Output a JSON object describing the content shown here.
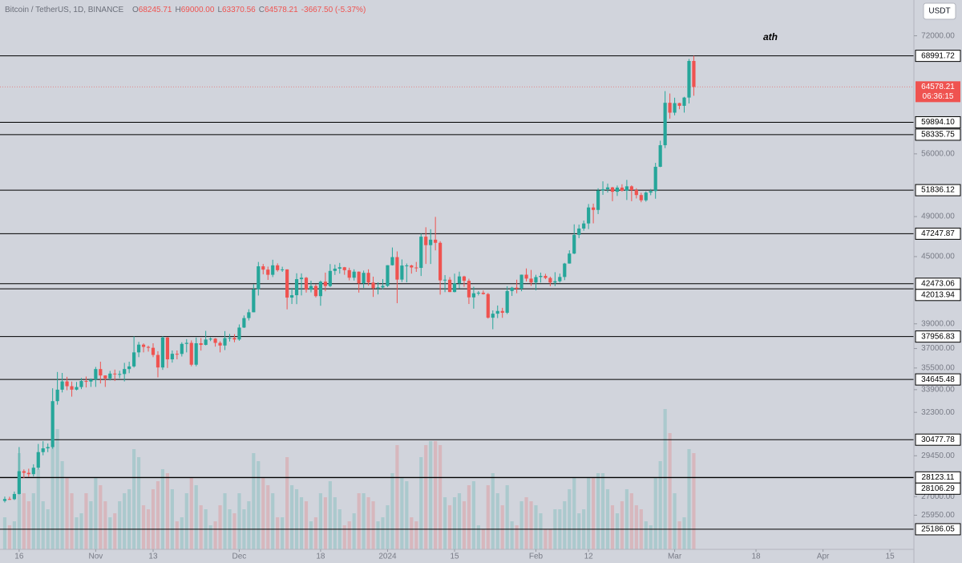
{
  "header": {
    "symbol": "Bitcoin / TetherUS, 1D, BINANCE",
    "ohlc": [
      {
        "key": "O",
        "value": "68245.71"
      },
      {
        "key": "H",
        "value": "69000.00"
      },
      {
        "key": "L",
        "value": "63370.56"
      },
      {
        "key": "C",
        "value": "64578.21"
      }
    ],
    "change": "-3667.50 (-5.37%)"
  },
  "chart_data": {
    "type": "candlestick",
    "currency": "USDT",
    "annotation": "ath",
    "log_scale": true,
    "up_color": "#26a69a",
    "down_color": "#ef5350",
    "xlim": [
      -1,
      190
    ],
    "xticks": [
      {
        "value": 3,
        "label": "16"
      },
      {
        "value": 19,
        "label": "Nov"
      },
      {
        "value": 31,
        "label": "13"
      },
      {
        "value": 49,
        "label": "Dec"
      },
      {
        "value": 66,
        "label": "18"
      },
      {
        "value": 80,
        "label": "2024"
      },
      {
        "value": 94,
        "label": "15"
      },
      {
        "value": 111,
        "label": "Feb"
      },
      {
        "value": 122,
        "label": "12"
      },
      {
        "value": 140,
        "label": "Mar"
      },
      {
        "value": 157,
        "label": "18"
      },
      {
        "value": 171,
        "label": "Apr"
      },
      {
        "value": 185,
        "label": "15"
      }
    ],
    "ylim": [
      24130,
      77700
    ],
    "yticks": [
      {
        "value": 72000,
        "label": "72000.00"
      },
      {
        "value": 56000,
        "label": "56000.00"
      },
      {
        "value": 49000,
        "label": "49000.00"
      },
      {
        "value": 45000,
        "label": "45000.00"
      },
      {
        "value": 39000,
        "label": "39000.00"
      },
      {
        "value": 37000,
        "label": "37000.00"
      },
      {
        "value": 35500,
        "label": "35500.00"
      },
      {
        "value": 33900,
        "label": "33900.00"
      },
      {
        "value": 32300,
        "label": "32300.00"
      },
      {
        "value": 29450,
        "label": "29450.00"
      },
      {
        "value": 27000,
        "label": "27000.00"
      },
      {
        "value": 25950,
        "label": "25950.00"
      }
    ],
    "levels": [
      {
        "value": 68991.72,
        "label": "68991.72"
      },
      {
        "value": 59894.1,
        "label": "59894.10"
      },
      {
        "value": 58335.75,
        "label": "58335.75"
      },
      {
        "value": 51836.12,
        "label": "51836.12"
      },
      {
        "value": 47247.87,
        "label": "47247.87"
      },
      {
        "value": 42473.06,
        "label": "42473.06"
      },
      {
        "value": 42013.94,
        "label": "42013.94"
      },
      {
        "value": 37956.83,
        "label": "37956.83"
      },
      {
        "value": 34645.48,
        "label": "34645.48"
      },
      {
        "value": 30477.78,
        "label": "30477.78"
      },
      {
        "value": 28123.11,
        "label": "28123.11"
      },
      {
        "value": 28106.29,
        "label": "28106.29"
      },
      {
        "value": 25186.05,
        "label": "25186.05"
      }
    ],
    "last_price": {
      "value": 64578.21,
      "label": "64578.21",
      "countdown": "06:36:15"
    },
    "open": [
      26750,
      26860,
      26850,
      27150,
      28500,
      28400,
      28320,
      28710,
      29680,
      29920,
      30000,
      33080,
      33900,
      34500,
      34150,
      33900,
      34090,
      34530,
      34490,
      34640,
      35420,
      34940,
      34720,
      35080,
      35040,
      35050,
      35420,
      35620,
      36700,
      37310,
      37130,
      37060,
      36500,
      35540,
      37880,
      36160,
      36590,
      36580,
      37370,
      37450,
      35750,
      37420,
      37290,
      37720,
      37790,
      37450,
      37240,
      37830,
      37850,
      37720,
      38690,
      39480,
      39970,
      41980,
      44080,
      43770,
      43290,
      44170,
      43720,
      43790,
      41240,
      41450,
      42890,
      43020,
      41940,
      42270,
      41370,
      42660,
      42270,
      43650,
      43860,
      43990,
      43720,
      43020,
      43580,
      42510,
      43470,
      42580,
      42070,
      42140,
      42280,
      44180,
      44950,
      42850,
      44150,
      44160,
      43970,
      43930,
      46950,
      46110,
      46650,
      46340,
      42780,
      42840,
      41730,
      42510,
      43140,
      42740,
      41260,
      41620,
      41670,
      41550,
      39510,
      39850,
      40080,
      39930,
      41820,
      42120,
      42030,
      43300,
      42940,
      42580,
      43080,
      43190,
      43000,
      42580,
      42700,
      43090,
      44340,
      45290,
      47130,
      47770,
      48290,
      49960,
      49700,
      51800,
      51940,
      52140,
      51660,
      52120,
      51780,
      52260,
      51840,
      51300,
      50730,
      51570,
      51730,
      54480,
      57040,
      62430,
      61130,
      62390,
      62030,
      63130,
      68245.71
    ],
    "high": [
      27000,
      26990,
      27290,
      30000,
      28610,
      28650,
      28920,
      30200,
      30380,
      30230,
      34000,
      35200,
      35130,
      34840,
      34490,
      34460,
      34750,
      34860,
      34720,
      35580,
      35980,
      34950,
      35280,
      35380,
      35290,
      35890,
      35980,
      37970,
      37530,
      37410,
      37230,
      37420,
      36790,
      37980,
      37920,
      36850,
      36850,
      37500,
      37750,
      37650,
      37880,
      37840,
      38420,
      37890,
      37830,
      37580,
      38400,
      38170,
      38150,
      38950,
      39700,
      40230,
      42420,
      44490,
      44300,
      44050,
      44700,
      44360,
      44040,
      43800,
      42100,
      43430,
      43420,
      43090,
      42750,
      42420,
      42760,
      43490,
      44290,
      44240,
      44400,
      44020,
      43950,
      43800,
      43600,
      43680,
      43800,
      43120,
      42600,
      42900,
      44180,
      45880,
      45500,
      44730,
      44340,
      44230,
      44490,
      47250,
      47900,
      47700,
      48970,
      46500,
      43260,
      43080,
      43400,
      43580,
      43200,
      42930,
      42200,
      41820,
      41870,
      41650,
      40130,
      40550,
      40350,
      42250,
      42200,
      42840,
      43310,
      43880,
      43740,
      43290,
      43490,
      43380,
      43120,
      43530,
      43400,
      44400,
      45610,
      48200,
      48170,
      48590,
      50330,
      50370,
      52040,
      52820,
      52570,
      52200,
      52350,
      52490,
      52980,
      52370,
      52050,
      51550,
      51700,
      51960,
      54940,
      57590,
      64000,
      63680,
      63110,
      62430,
      63230,
      68530,
      69000
    ],
    "low": [
      26660,
      26810,
      26800,
      27120,
      28080,
      28150,
      28180,
      28600,
      29480,
      29680,
      29890,
      32830,
      33700,
      33860,
      33400,
      33850,
      33940,
      34060,
      34100,
      34100,
      34350,
      34100,
      34570,
      34530,
      34740,
      34500,
      35110,
      35530,
      36330,
      36700,
      36760,
      36330,
      34800,
      35360,
      35500,
      35910,
      36160,
      36380,
      36700,
      35630,
      35630,
      36840,
      37250,
      37590,
      37150,
      36700,
      36880,
      37560,
      37500,
      37620,
      38660,
      39280,
      39970,
      41420,
      43330,
      42820,
      43080,
      43580,
      43560,
      40220,
      40680,
      40670,
      41430,
      41680,
      41700,
      41250,
      40530,
      41800,
      42170,
      43280,
      43400,
      43290,
      42780,
      42760,
      41680,
      42100,
      42300,
      41300,
      41520,
      41960,
      42180,
      44150,
      40750,
      42630,
      42600,
      43400,
      43560,
      43180,
      44300,
      44300,
      45600,
      41500,
      41720,
      41720,
      41700,
      42050,
      42200,
      40680,
      40280,
      41430,
      41500,
      39440,
      38550,
      39480,
      39500,
      39820,
      41390,
      41620,
      41800,
      42680,
      42280,
      41880,
      42580,
      42890,
      42250,
      42260,
      42580,
      42800,
      44330,
      45240,
      46800,
      47550,
      47710,
      48300,
      49260,
      51320,
      51570,
      50630,
      51200,
      51680,
      50760,
      50630,
      50930,
      50520,
      50580,
      51280,
      50900,
      54440,
      56690,
      60360,
      60790,
      61580,
      61140,
      62340,
      63370.56
    ],
    "close": [
      26860,
      26850,
      27150,
      28500,
      28400,
      28320,
      28710,
      29680,
      29920,
      30000,
      33080,
      33900,
      34500,
      34150,
      33900,
      34090,
      34530,
      34490,
      34640,
      35420,
      34940,
      34720,
      35080,
      35040,
      35050,
      35420,
      35620,
      36700,
      37310,
      37130,
      37060,
      36500,
      35540,
      37880,
      36160,
      36590,
      36580,
      37370,
      37450,
      35750,
      37420,
      37290,
      37720,
      37790,
      37450,
      37240,
      37830,
      37850,
      37720,
      38690,
      39480,
      39970,
      41980,
      44080,
      43770,
      43290,
      44170,
      43720,
      43790,
      41240,
      41450,
      42890,
      43020,
      41940,
      42270,
      41370,
      42660,
      42270,
      43650,
      43860,
      43990,
      43720,
      43020,
      43580,
      42510,
      43470,
      42580,
      42070,
      42140,
      42280,
      44180,
      44950,
      42850,
      44150,
      44160,
      43970,
      43930,
      46950,
      46110,
      46650,
      46340,
      42780,
      42840,
      41730,
      42510,
      43140,
      42740,
      41260,
      41620,
      41670,
      41550,
      39510,
      39850,
      40080,
      39930,
      41820,
      42120,
      42030,
      43300,
      42940,
      42580,
      43080,
      43190,
      43000,
      42580,
      42700,
      43090,
      44340,
      45290,
      47130,
      47770,
      48290,
      49960,
      49700,
      51800,
      51940,
      52140,
      51660,
      52120,
      51780,
      52260,
      51840,
      51300,
      50730,
      51570,
      51730,
      54480,
      57040,
      62430,
      61130,
      62390,
      62030,
      63130,
      68245.71,
      64578.21
    ],
    "volume": [
      40,
      30,
      35,
      120,
      70,
      60,
      70,
      100,
      60,
      50,
      130,
      150,
      110,
      90,
      70,
      40,
      45,
      70,
      60,
      90,
      80,
      60,
      40,
      45,
      60,
      70,
      75,
      125,
      115,
      55,
      50,
      75,
      85,
      100,
      95,
      75,
      35,
      40,
      70,
      90,
      80,
      55,
      50,
      30,
      35,
      55,
      70,
      50,
      45,
      70,
      50,
      60,
      120,
      110,
      90,
      80,
      70,
      40,
      40,
      115,
      80,
      75,
      65,
      60,
      35,
      40,
      70,
      65,
      85,
      65,
      50,
      30,
      35,
      45,
      70,
      70,
      65,
      60,
      35,
      40,
      55,
      95,
      130,
      90,
      85,
      40,
      35,
      115,
      130,
      135,
      135,
      130,
      65,
      55,
      65,
      70,
      60,
      80,
      85,
      30,
      25,
      80,
      95,
      70,
      55,
      80,
      35,
      30,
      60,
      65,
      60,
      55,
      45,
      25,
      25,
      50,
      50,
      60,
      75,
      90,
      45,
      50,
      90,
      90,
      95,
      95,
      75,
      55,
      45,
      60,
      75,
      70,
      55,
      50,
      35,
      30,
      90,
      110,
      175,
      145,
      70,
      35,
      40,
      125,
      120
    ]
  }
}
